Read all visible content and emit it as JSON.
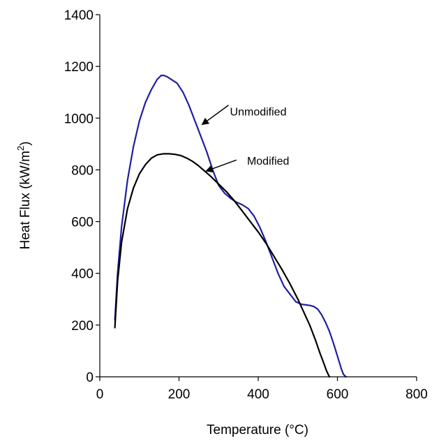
{
  "chart_data": {
    "type": "line",
    "title": "",
    "xlabel": "Temperature (°C)",
    "ylabel": "Heat Flux (kW/m²)",
    "ylabel_parts": {
      "base": "Heat Flux (kW/m",
      "sup": "2",
      "close": ")"
    },
    "xlim": [
      0,
      800
    ],
    "ylim": [
      0,
      1400
    ],
    "xticks": [
      "0",
      "200",
      "400",
      "600",
      "800"
    ],
    "yticks": [
      "0",
      "200",
      "400",
      "600",
      "800",
      "1000",
      "1200",
      "1400"
    ],
    "grid": false,
    "legend": "none",
    "annotations": [
      {
        "text": "Unmodified",
        "series": "Unmodified",
        "text_at": [
          400,
          1010
        ],
        "arrow_from": [
          325,
          1050
        ],
        "arrow_to": [
          258,
          975
        ]
      },
      {
        "text": "Modified",
        "series": "Modified",
        "text_at": [
          425,
          820
        ],
        "arrow_from": [
          345,
          838
        ],
        "arrow_to": [
          268,
          795
        ]
      }
    ],
    "series": [
      {
        "name": "Unmodified",
        "color": "#1f1fa0",
        "x": [
          38,
          45,
          55,
          70,
          85,
          100,
          115,
          130,
          145,
          155,
          162,
          170,
          180,
          195,
          210,
          225,
          240,
          255,
          270,
          285,
          300,
          315,
          330,
          345,
          360,
          375,
          390,
          405,
          420,
          435,
          450,
          465,
          480,
          495,
          510,
          520,
          530,
          540,
          550,
          560,
          570,
          580,
          590,
          600,
          610,
          615,
          620,
          622
        ],
        "y": [
          220,
          400,
          580,
          760,
          890,
          990,
          1060,
          1110,
          1150,
          1165,
          1165,
          1160,
          1150,
          1135,
          1100,
          1050,
          990,
          930,
          870,
          800,
          740,
          710,
          690,
          675,
          665,
          650,
          620,
          575,
          520,
          460,
          400,
          350,
          320,
          290,
          280,
          278,
          276,
          272,
          262,
          240,
          210,
          175,
          130,
          80,
          30,
          10,
          2,
          0
        ]
      },
      {
        "name": "Modified",
        "color": "#000000",
        "x": [
          38,
          45,
          55,
          70,
          85,
          100,
          115,
          130,
          145,
          160,
          175,
          190,
          205,
          220,
          235,
          250,
          265,
          280,
          300,
          320,
          340,
          360,
          380,
          400,
          420,
          440,
          460,
          480,
          500,
          515,
          530,
          545,
          555,
          565,
          572,
          578,
          580
        ],
        "y": [
          190,
          370,
          520,
          650,
          730,
          785,
          820,
          845,
          858,
          862,
          862,
          860,
          855,
          845,
          832,
          815,
          795,
          775,
          745,
          715,
          680,
          640,
          600,
          560,
          515,
          465,
          415,
          360,
          300,
          250,
          200,
          140,
          95,
          55,
          25,
          5,
          0
        ]
      }
    ]
  }
}
